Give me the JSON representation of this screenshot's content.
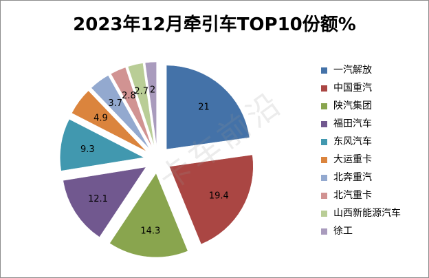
{
  "chart_data": {
    "type": "pie",
    "title": "2023年12月牵引车TOP10份额%",
    "categories": [
      "一汽解放",
      "中国重汽",
      "陕汽集团",
      "福田汽车",
      "东风汽车",
      "大运重卡",
      "北奔重汽",
      "北汽重卡",
      "山西新能源汽车",
      "徐工"
    ],
    "values": [
      21,
      19.4,
      14.3,
      12.1,
      9.3,
      4.9,
      3.7,
      2.8,
      2.7,
      2
    ],
    "colors": [
      "#4472a8",
      "#aa4643",
      "#89a54e",
      "#71588f",
      "#4198af",
      "#db843d",
      "#93a9cf",
      "#d19392",
      "#b9cd96",
      "#a99bbd"
    ],
    "exploded": true,
    "legend_position": "right",
    "grid": false
  },
  "watermark": "卡车前沿"
}
